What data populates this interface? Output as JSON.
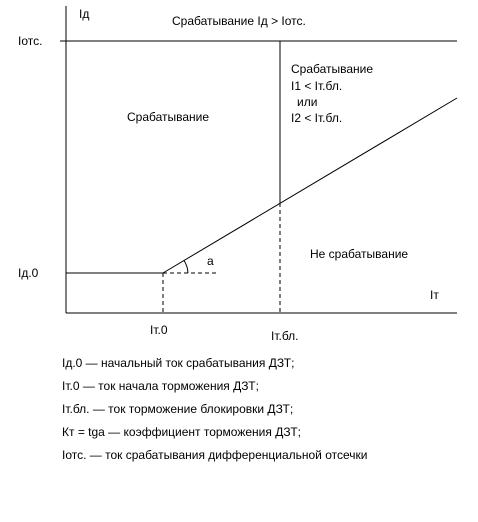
{
  "axes": {
    "y_label": "Iд",
    "x_label": "Iт"
  },
  "levels": {
    "i_ots": "Iотс.",
    "i_d0": "Iд.0",
    "i_t0": "Iт.0",
    "i_tbl": "Iт.бл.",
    "angle": "a"
  },
  "regions": {
    "top": "Срабатывание Iд > Iотс.",
    "left": "Срабатывание",
    "right_block": [
      "Срабатывание",
      "I1 < Iт.бл.",
      "или",
      "I2 < Iт.бл."
    ],
    "bottom_right": "Не срабатывание"
  },
  "legend": [
    "Iд.0 —  начальный ток срабатывания ДЗТ;",
    "Iт.0 — ток начала торможения ДЗТ;",
    "Iт.бл. — ток торможение блокировки ДЗТ;",
    "Кт = tgа — коэффициент торможения ДЗТ;",
    "Iотс. — ток срабатывания дифференциальной отсечки"
  ]
}
